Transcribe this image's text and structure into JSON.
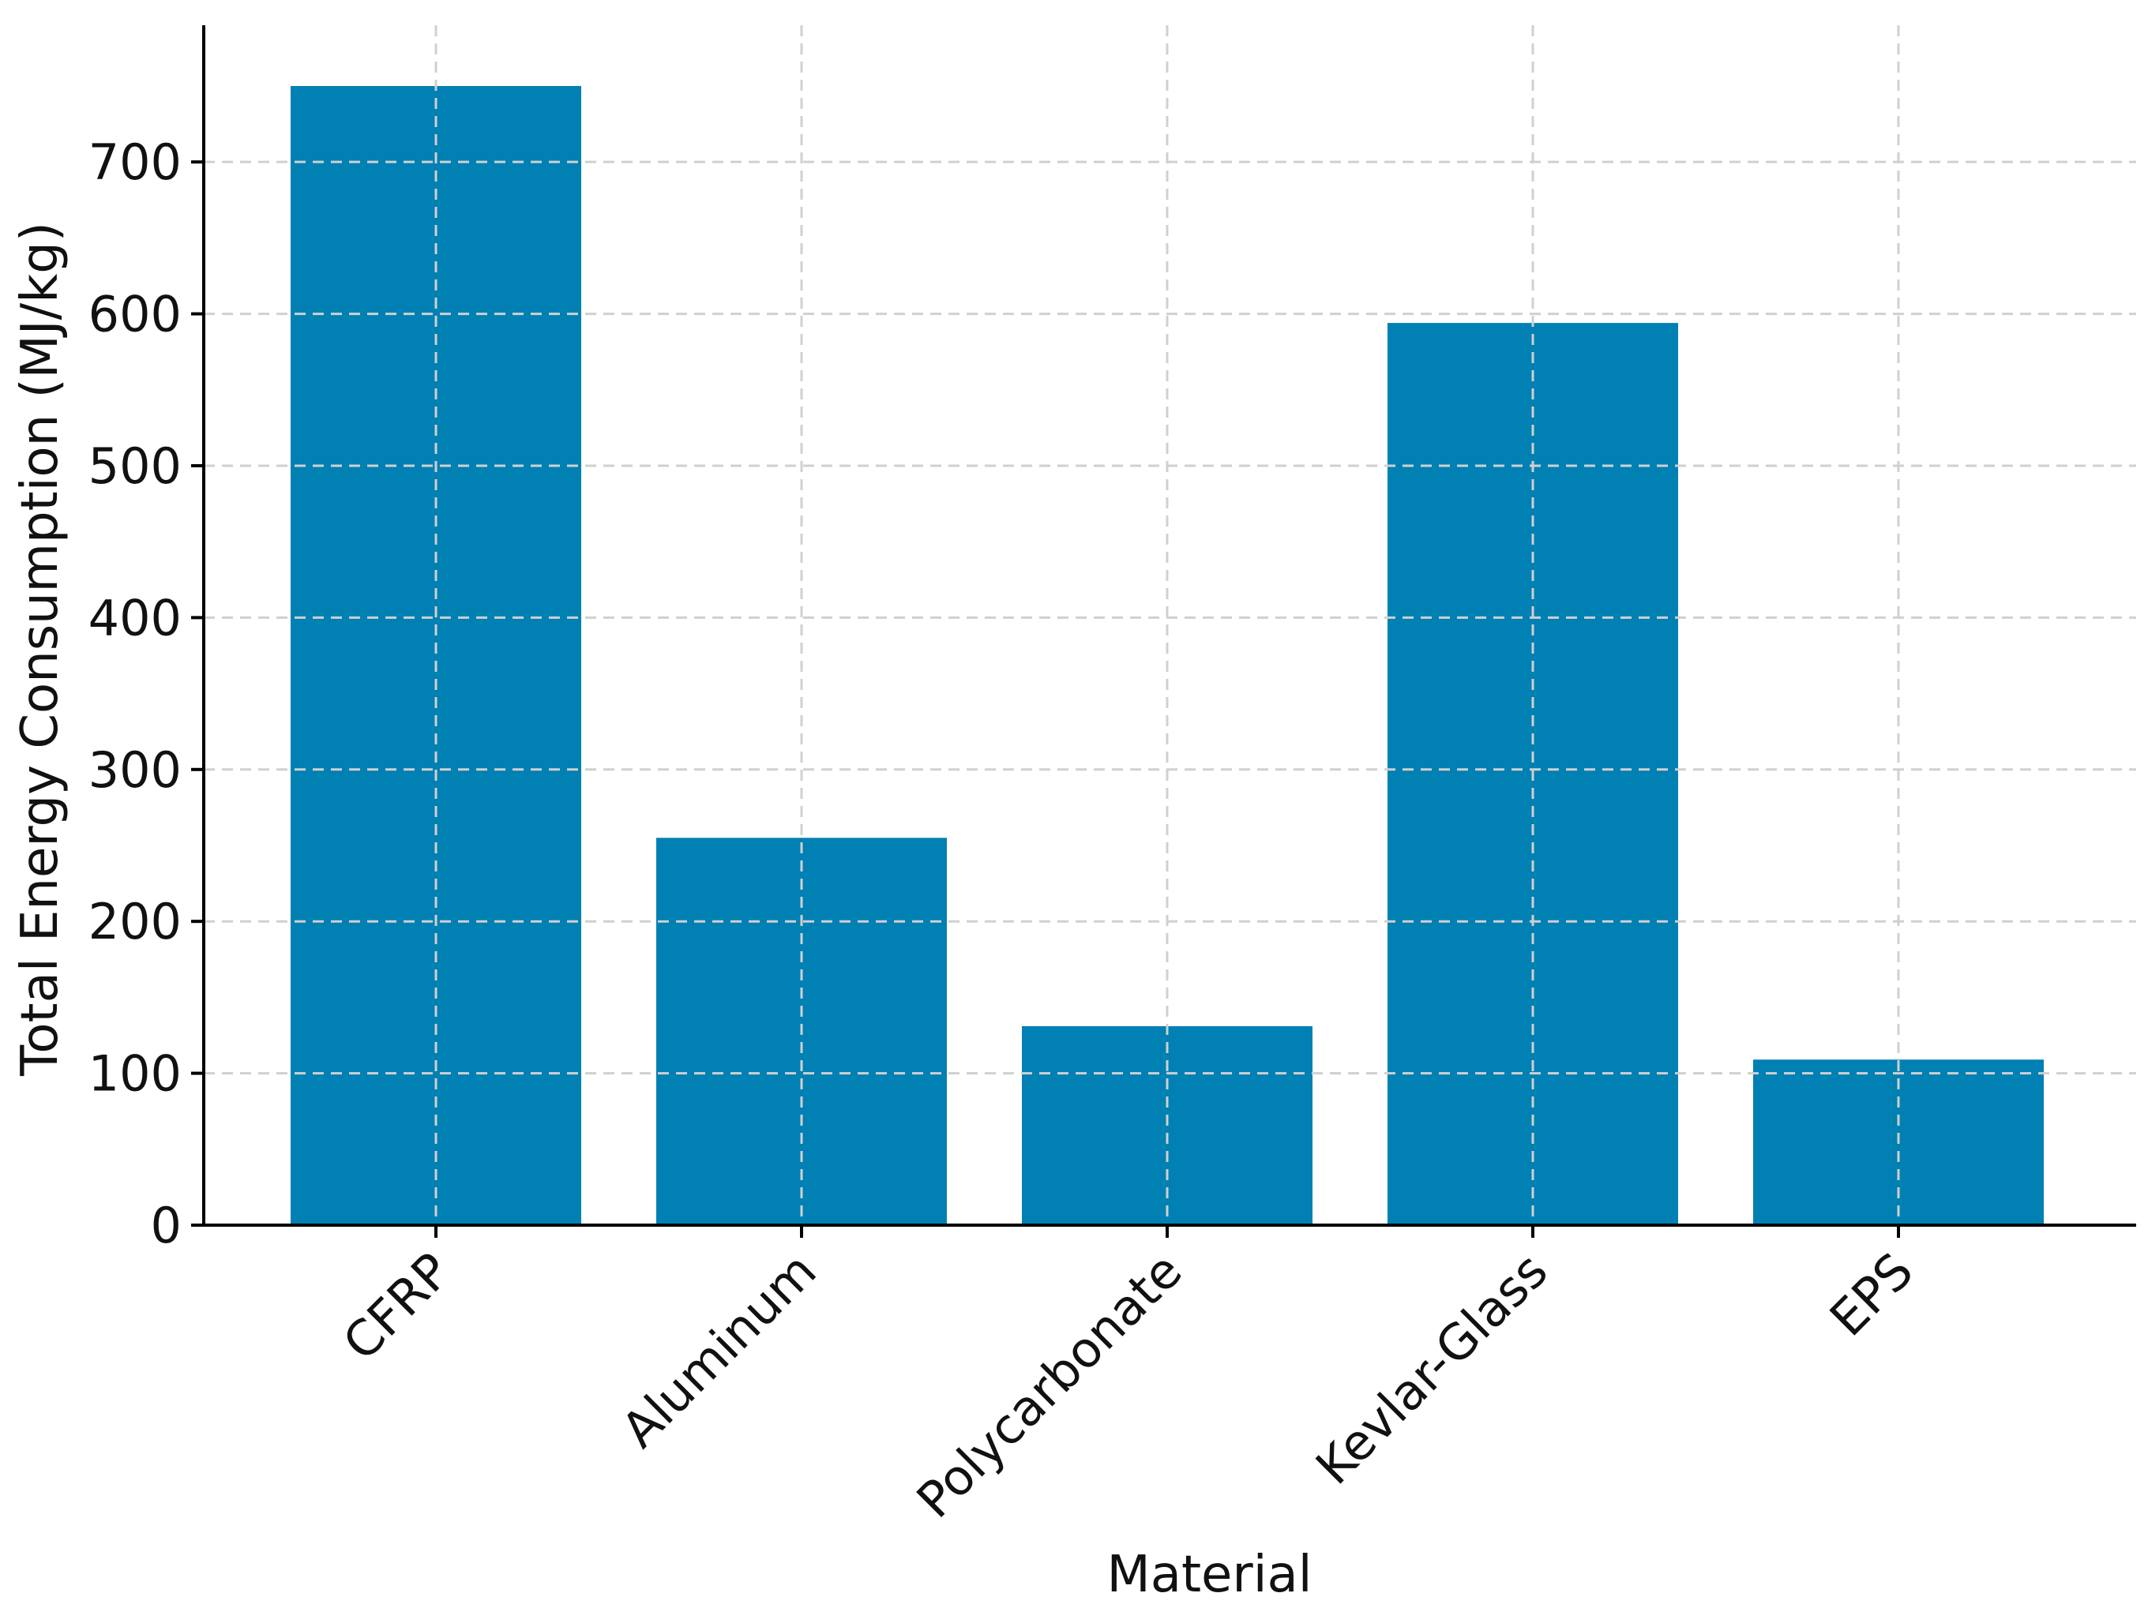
{
  "chart_data": {
    "type": "bar",
    "title": "",
    "xlabel": "Material",
    "ylabel": "Total Energy Consumption (MJ/kg)",
    "categories": [
      "CFRP",
      "Aluminum",
      "Polycarbonate",
      "Kevlar-Glass",
      "EPS"
    ],
    "values": [
      750,
      255,
      131,
      594,
      109
    ],
    "ylim": [
      0,
      790
    ],
    "yticks": [
      0,
      100,
      200,
      300,
      400,
      500,
      600,
      700
    ],
    "grid": true,
    "legend": "none",
    "bar_color": "#0080b3",
    "grid_color": "#d0d0d0",
    "axis_color": "#000000"
  }
}
